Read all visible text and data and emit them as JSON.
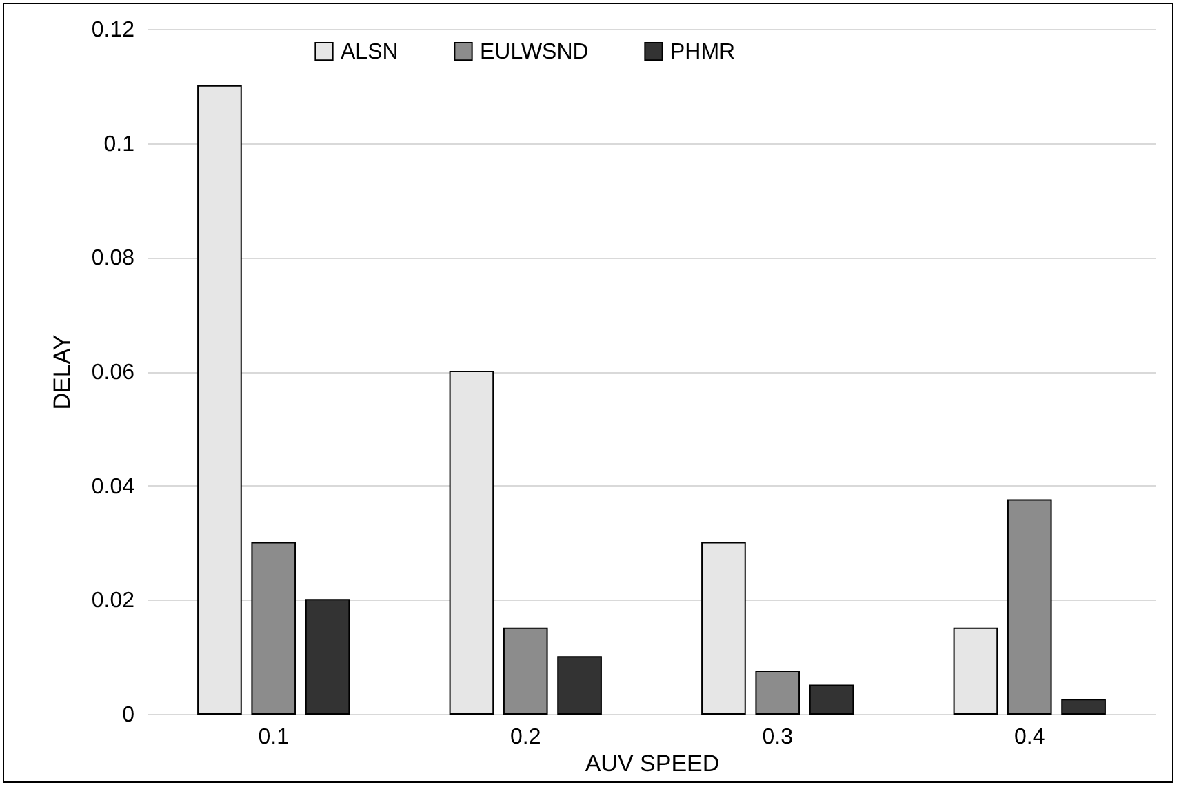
{
  "chart_data": {
    "type": "bar",
    "xlabel": "AUV SPEED",
    "ylabel": "DELAY",
    "categories": [
      "0.1",
      "0.2",
      "0.3",
      "0.4"
    ],
    "series": [
      {
        "name": "ALSN",
        "color": "#e6e6e6",
        "values": [
          0.11,
          0.06,
          0.03,
          0.015
        ]
      },
      {
        "name": "EULWSND",
        "color": "#8c8c8c",
        "values": [
          0.03,
          0.015,
          0.0075,
          0.0375
        ]
      },
      {
        "name": "PHMR",
        "color": "#333333",
        "values": [
          0.02,
          0.01,
          0.005,
          0.0025
        ]
      }
    ],
    "ylim": [
      0,
      0.12
    ],
    "yticks": [
      0,
      0.02,
      0.04,
      0.06,
      0.08,
      0.1,
      0.12
    ],
    "grid": "y",
    "legend": "top"
  }
}
